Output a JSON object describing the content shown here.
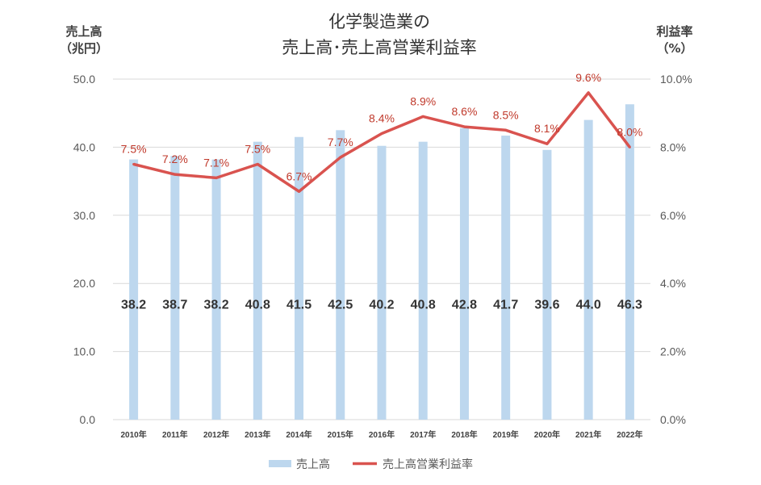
{
  "chart_data": {
    "type": "bar",
    "title_lines": [
      "化学製造業の",
      "売上高･売上高営業利益率"
    ],
    "y_left_title_lines": [
      "売上高",
      "（兆円）"
    ],
    "y_right_title_lines": [
      "利益率",
      "（%）"
    ],
    "categories": [
      "2010年",
      "2011年",
      "2012年",
      "2013年",
      "2014年",
      "2015年",
      "2016年",
      "2017年",
      "2018年",
      "2019年",
      "2020年",
      "2021年",
      "2022年"
    ],
    "y_left_ticks": [
      "0.0",
      "10.0",
      "20.0",
      "30.0",
      "40.0",
      "50.0"
    ],
    "y_right_ticks": [
      "0.0%",
      "2.0%",
      "4.0%",
      "6.0%",
      "8.0%",
      "10.0%"
    ],
    "ylim_left": [
      0,
      50
    ],
    "ylim_right": [
      0,
      10
    ],
    "grid": true,
    "legend_position": "bottom",
    "series": [
      {
        "name": "売上高",
        "type": "bar",
        "axis": "left",
        "color": "#bdd7ee",
        "values": [
          38.2,
          38.7,
          38.2,
          40.8,
          41.5,
          42.5,
          40.2,
          40.8,
          42.8,
          41.7,
          39.6,
          44.0,
          46.3
        ],
        "labels": [
          "38.2",
          "38.7",
          "38.2",
          "40.8",
          "41.5",
          "42.5",
          "40.2",
          "40.8",
          "42.8",
          "41.7",
          "39.6",
          "44.0",
          "46.3"
        ]
      },
      {
        "name": "売上高営業利益率",
        "type": "line",
        "axis": "right",
        "color": "#d9534f",
        "values": [
          7.5,
          7.2,
          7.1,
          7.5,
          6.7,
          7.7,
          8.4,
          8.9,
          8.6,
          8.5,
          8.1,
          9.6,
          8.0
        ],
        "labels": [
          "7.5%",
          "7.2%",
          "7.1%",
          "7.5%",
          "6.7%",
          "7.7%",
          "8.4%",
          "8.9%",
          "8.6%",
          "8.5%",
          "8.1%",
          "9.6%",
          "8.0%"
        ]
      }
    ]
  }
}
